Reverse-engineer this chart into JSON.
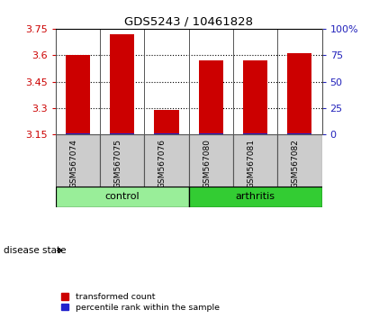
{
  "title": "GDS5243 / 10461828",
  "samples": [
    "GSM567074",
    "GSM567075",
    "GSM567076",
    "GSM567080",
    "GSM567081",
    "GSM567082"
  ],
  "red_values": [
    3.6,
    3.72,
    3.29,
    3.57,
    3.57,
    3.61
  ],
  "blue_values": [
    3.158,
    3.158,
    3.158,
    3.158,
    3.158,
    3.158
  ],
  "y_min": 3.15,
  "y_max": 3.75,
  "y_ticks": [
    3.15,
    3.3,
    3.45,
    3.6,
    3.75
  ],
  "y2_ticks": [
    0,
    25,
    50,
    75,
    100
  ],
  "y2_labels": [
    "0",
    "25",
    "50",
    "75",
    "100%"
  ],
  "groups": [
    {
      "label": "control",
      "indices": [
        0,
        1,
        2
      ],
      "color": "#99ee99"
    },
    {
      "label": "arthritis",
      "indices": [
        3,
        4,
        5
      ],
      "color": "#33cc33"
    }
  ],
  "group_label": "disease state",
  "red_color": "#cc0000",
  "blue_color": "#2222cc",
  "bar_width": 0.55,
  "background_color": "#ffffff",
  "tick_label_color_left": "#cc0000",
  "tick_label_color_right": "#2222bb",
  "cell_bg": "#cccccc",
  "cell_border": "#555555"
}
